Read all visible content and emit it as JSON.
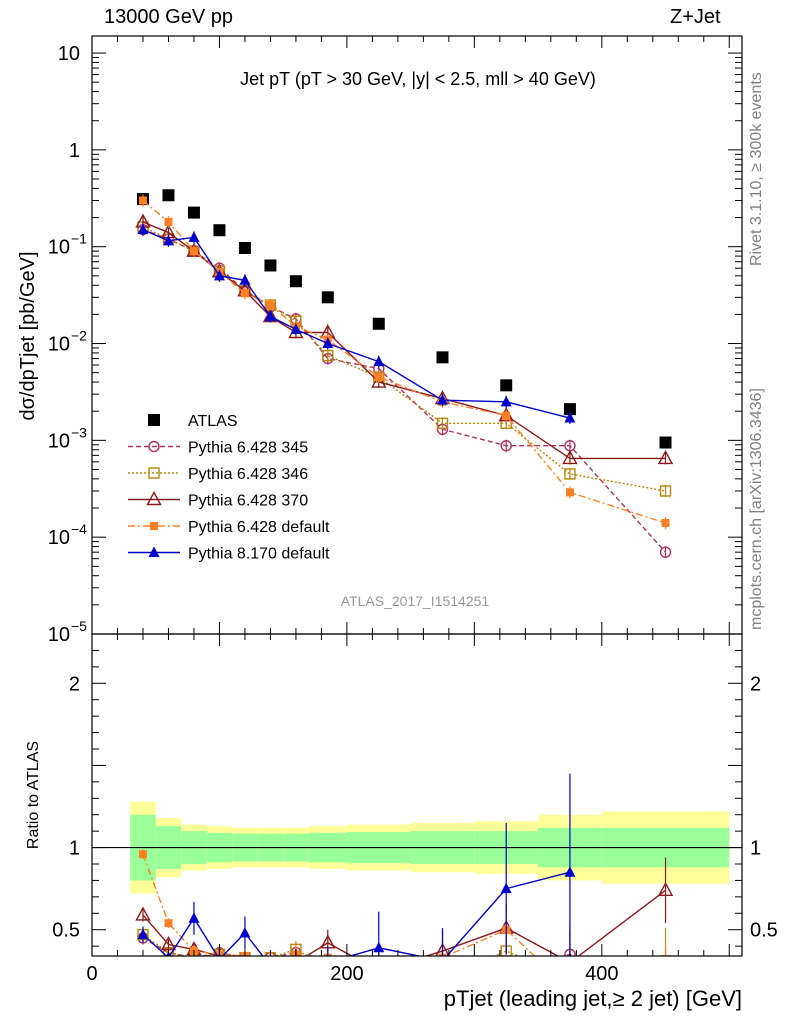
{
  "header": {
    "left": "13000 GeV pp",
    "right": "Z+Jet"
  },
  "side_text": {
    "rivet": "Rivet 3.1.10, ≥ 300k events",
    "mcplots": "mcplots.cern.ch [arXiv:1306.3436]"
  },
  "chart_data": {
    "type": "scatter",
    "title": "Jet pT (pT > 30 GeV, |y| < 2.5, mll > 40 GeV)",
    "watermark": "ATLAS_2017_I1514251",
    "xlabel": "pTjet (leading jet,≥ 2 jet) [GeV]",
    "ylabel": "dσ/dpTjet [pb/GeV]",
    "ratio_ylabel": "Ratio to ATLAS",
    "xlim": [
      0,
      510
    ],
    "ylim": [
      1e-05,
      15
    ],
    "yscale": "log",
    "ratio_ylim": [
      0.34,
      2.3
    ],
    "x_ticks": [
      "0",
      "200",
      "400"
    ],
    "y_ticks": [
      "10",
      "1",
      "10-1",
      "10-2",
      "10-3",
      "10-4",
      "10-5"
    ],
    "ratio_ticks": [
      "0.5",
      "1",
      "2"
    ],
    "legend_position": "bottom-left",
    "x": [
      40,
      60,
      80,
      100,
      120,
      140,
      160,
      185,
      225,
      275,
      325,
      375,
      450
    ],
    "band_x_edges": [
      30,
      50,
      70,
      90,
      110,
      130,
      150,
      170,
      200,
      250,
      300,
      350,
      400,
      500
    ],
    "band_inner": [
      0.2,
      0.13,
      0.1,
      0.09,
      0.085,
      0.085,
      0.085,
      0.09,
      0.095,
      0.1,
      0.1,
      0.12,
      0.12
    ],
    "band_outer": [
      0.28,
      0.18,
      0.14,
      0.13,
      0.12,
      0.12,
      0.12,
      0.13,
      0.14,
      0.15,
      0.16,
      0.2,
      0.22
    ],
    "series": [
      {
        "name": "ATLAS",
        "color": "#000000",
        "marker": "square-filled",
        "line": "none",
        "values": [
          0.31,
          0.34,
          0.225,
          0.148,
          0.097,
          0.064,
          0.044,
          0.03,
          0.016,
          0.0072,
          0.0037,
          0.0021,
          0.00095
        ],
        "ratio": [],
        "ratio_err": []
      },
      {
        "name": "Pythia 6.428 345",
        "color": "#b03060",
        "marker": "circle-open",
        "line": "dashed",
        "values": [
          0.15,
          0.12,
          0.09,
          0.06,
          0.035,
          0.024,
          0.018,
          0.007,
          0.0055,
          0.0013,
          0.00088,
          0.00088,
          7e-05
        ],
        "ratio": [
          0.45,
          0.36,
          0.33,
          0.36,
          0.33,
          0.33,
          0.36,
          0.25,
          0.3,
          0.2,
          0.24,
          0.35,
          0.08
        ],
        "ratio_err": [
          0.04,
          0.02,
          0.03,
          0.03,
          0.03,
          0.04,
          0.05,
          0.06,
          0.08,
          0.1,
          0.1,
          0.2,
          0.3
        ]
      },
      {
        "name": "Pythia 6.428 346",
        "color": "#b8860b",
        "marker": "square-open",
        "line": "dotted",
        "values": [
          0.16,
          0.12,
          0.09,
          0.056,
          0.035,
          0.025,
          0.017,
          0.0075,
          0.0045,
          0.0015,
          0.0015,
          0.00045,
          0.0003
        ],
        "ratio": [
          0.47,
          0.36,
          0.33,
          0.35,
          0.33,
          0.33,
          0.38,
          0.27,
          0.28,
          0.21,
          0.37,
          0.21,
          0.31
        ],
        "ratio_err": [
          0.04,
          0.02,
          0.03,
          0.03,
          0.03,
          0.04,
          0.05,
          0.06,
          0.08,
          0.1,
          0.12,
          0.15,
          0.2
        ]
      },
      {
        "name": "Pythia 6.428 370",
        "color": "#8b1a1a",
        "marker": "triangle-open",
        "line": "solid",
        "values": [
          0.18,
          0.14,
          0.09,
          0.055,
          0.035,
          0.019,
          0.013,
          0.013,
          0.004,
          0.0027,
          0.0018,
          0.00065,
          0.00065
        ],
        "ratio": [
          0.59,
          0.41,
          0.38,
          0.34,
          0.31,
          0.3,
          0.3,
          0.42,
          0.25,
          0.37,
          0.51,
          0.3,
          0.74
        ],
        "ratio_err": [
          0.04,
          0.03,
          0.04,
          0.04,
          0.04,
          0.05,
          0.06,
          0.08,
          0.1,
          0.12,
          0.15,
          0.2,
          0.2
        ]
      },
      {
        "name": "Pythia 6.428 default",
        "color": "#ff7f24",
        "marker": "square-filled-small",
        "line": "dashdot",
        "values": [
          0.3,
          0.18,
          0.09,
          0.055,
          0.033,
          0.025,
          0.015,
          0.011,
          0.0045,
          0.0025,
          0.0018,
          0.00029,
          0.00014
        ],
        "ratio": [
          0.96,
          0.54,
          0.37,
          0.35,
          0.34,
          0.3,
          0.35,
          0.33,
          0.29,
          0.33,
          0.5,
          0.14,
          0.15
        ],
        "ratio_err": [
          0.03,
          0.03,
          0.03,
          0.04,
          0.04,
          0.05,
          0.06,
          0.07,
          0.09,
          0.11,
          0.14,
          0.2,
          0.25
        ]
      },
      {
        "name": "Pythia 8.170 default",
        "color": "#0000cd",
        "marker": "triangle-filled",
        "line": "solid",
        "values": [
          0.15,
          0.115,
          0.125,
          0.05,
          0.045,
          0.019,
          0.014,
          0.01,
          0.0065,
          0.0026,
          0.0025,
          0.0017,
          null
        ],
        "ratio": [
          0.47,
          0.33,
          0.57,
          0.32,
          0.48,
          0.28,
          0.3,
          0.3,
          0.39,
          0.31,
          0.75,
          0.85,
          null
        ],
        "ratio_err": [
          0.05,
          0.03,
          0.1,
          0.05,
          0.1,
          0.06,
          0.08,
          0.1,
          0.22,
          0.2,
          0.4,
          0.6,
          null
        ]
      }
    ]
  }
}
